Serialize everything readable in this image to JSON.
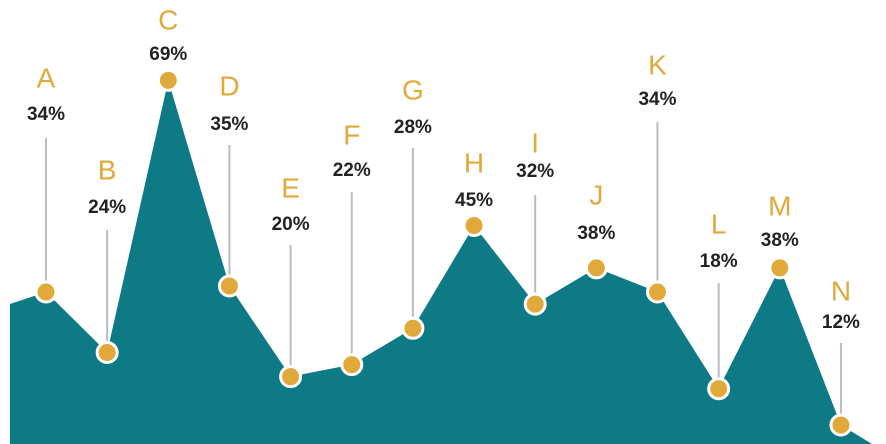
{
  "chart_data": {
    "type": "area",
    "categories": [
      "A",
      "B",
      "C",
      "D",
      "E",
      "F",
      "G",
      "H",
      "I",
      "J",
      "K",
      "L",
      "M",
      "N"
    ],
    "values": [
      34,
      24,
      69,
      35,
      20,
      22,
      28,
      45,
      32,
      38,
      34,
      18,
      38,
      12
    ],
    "value_labels": [
      "34%",
      "24%",
      "69%",
      "35%",
      "20%",
      "22%",
      "28%",
      "45%",
      "32%",
      "38%",
      "34%",
      "18%",
      "38%",
      "12%"
    ],
    "color": "#0e7a85",
    "marker_color": "#e0a93a",
    "ylim": [
      0,
      100
    ]
  }
}
